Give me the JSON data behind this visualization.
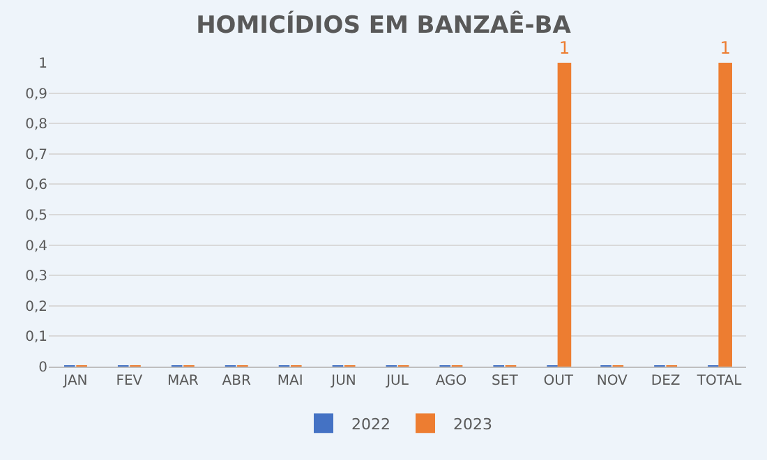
{
  "chart_data": {
    "type": "bar",
    "title": "HOMICÍDIOS EM BANZAÊ-BA",
    "categories": [
      "JAN",
      "FEV",
      "MAR",
      "ABR",
      "MAI",
      "JUN",
      "JUL",
      "AGO",
      "SET",
      "OUT",
      "NOV",
      "DEZ",
      "TOTAL"
    ],
    "series": [
      {
        "name": "2022",
        "color": "#4472c4",
        "values": [
          0,
          0,
          0,
          0,
          0,
          0,
          0,
          0,
          0,
          0,
          0,
          0,
          0
        ]
      },
      {
        "name": "2023",
        "color": "#ed7d31",
        "values": [
          0,
          0,
          0,
          0,
          0,
          0,
          0,
          0,
          0,
          1,
          0,
          0,
          1
        ],
        "value_labels": [
          null,
          null,
          null,
          null,
          null,
          null,
          null,
          null,
          null,
          "1",
          null,
          null,
          "1"
        ]
      }
    ],
    "ylim": [
      0,
      1
    ],
    "yticks": [
      0,
      {
        "value": 0.1,
        "label": "0,1"
      },
      {
        "value": 0.2,
        "label": "0,2"
      },
      {
        "value": 0.3,
        "label": "0,3"
      },
      {
        "value": 0.4,
        "label": "0,4"
      },
      {
        "value": 0.5,
        "label": "0,5"
      },
      {
        "value": 0.6,
        "label": "0,6"
      },
      {
        "value": 0.7,
        "label": "0,7"
      },
      {
        "value": 0.8,
        "label": "0,8"
      },
      {
        "value": 0.9,
        "label": "0,9"
      },
      1
    ],
    "grid": "y",
    "legend": "bottom"
  }
}
